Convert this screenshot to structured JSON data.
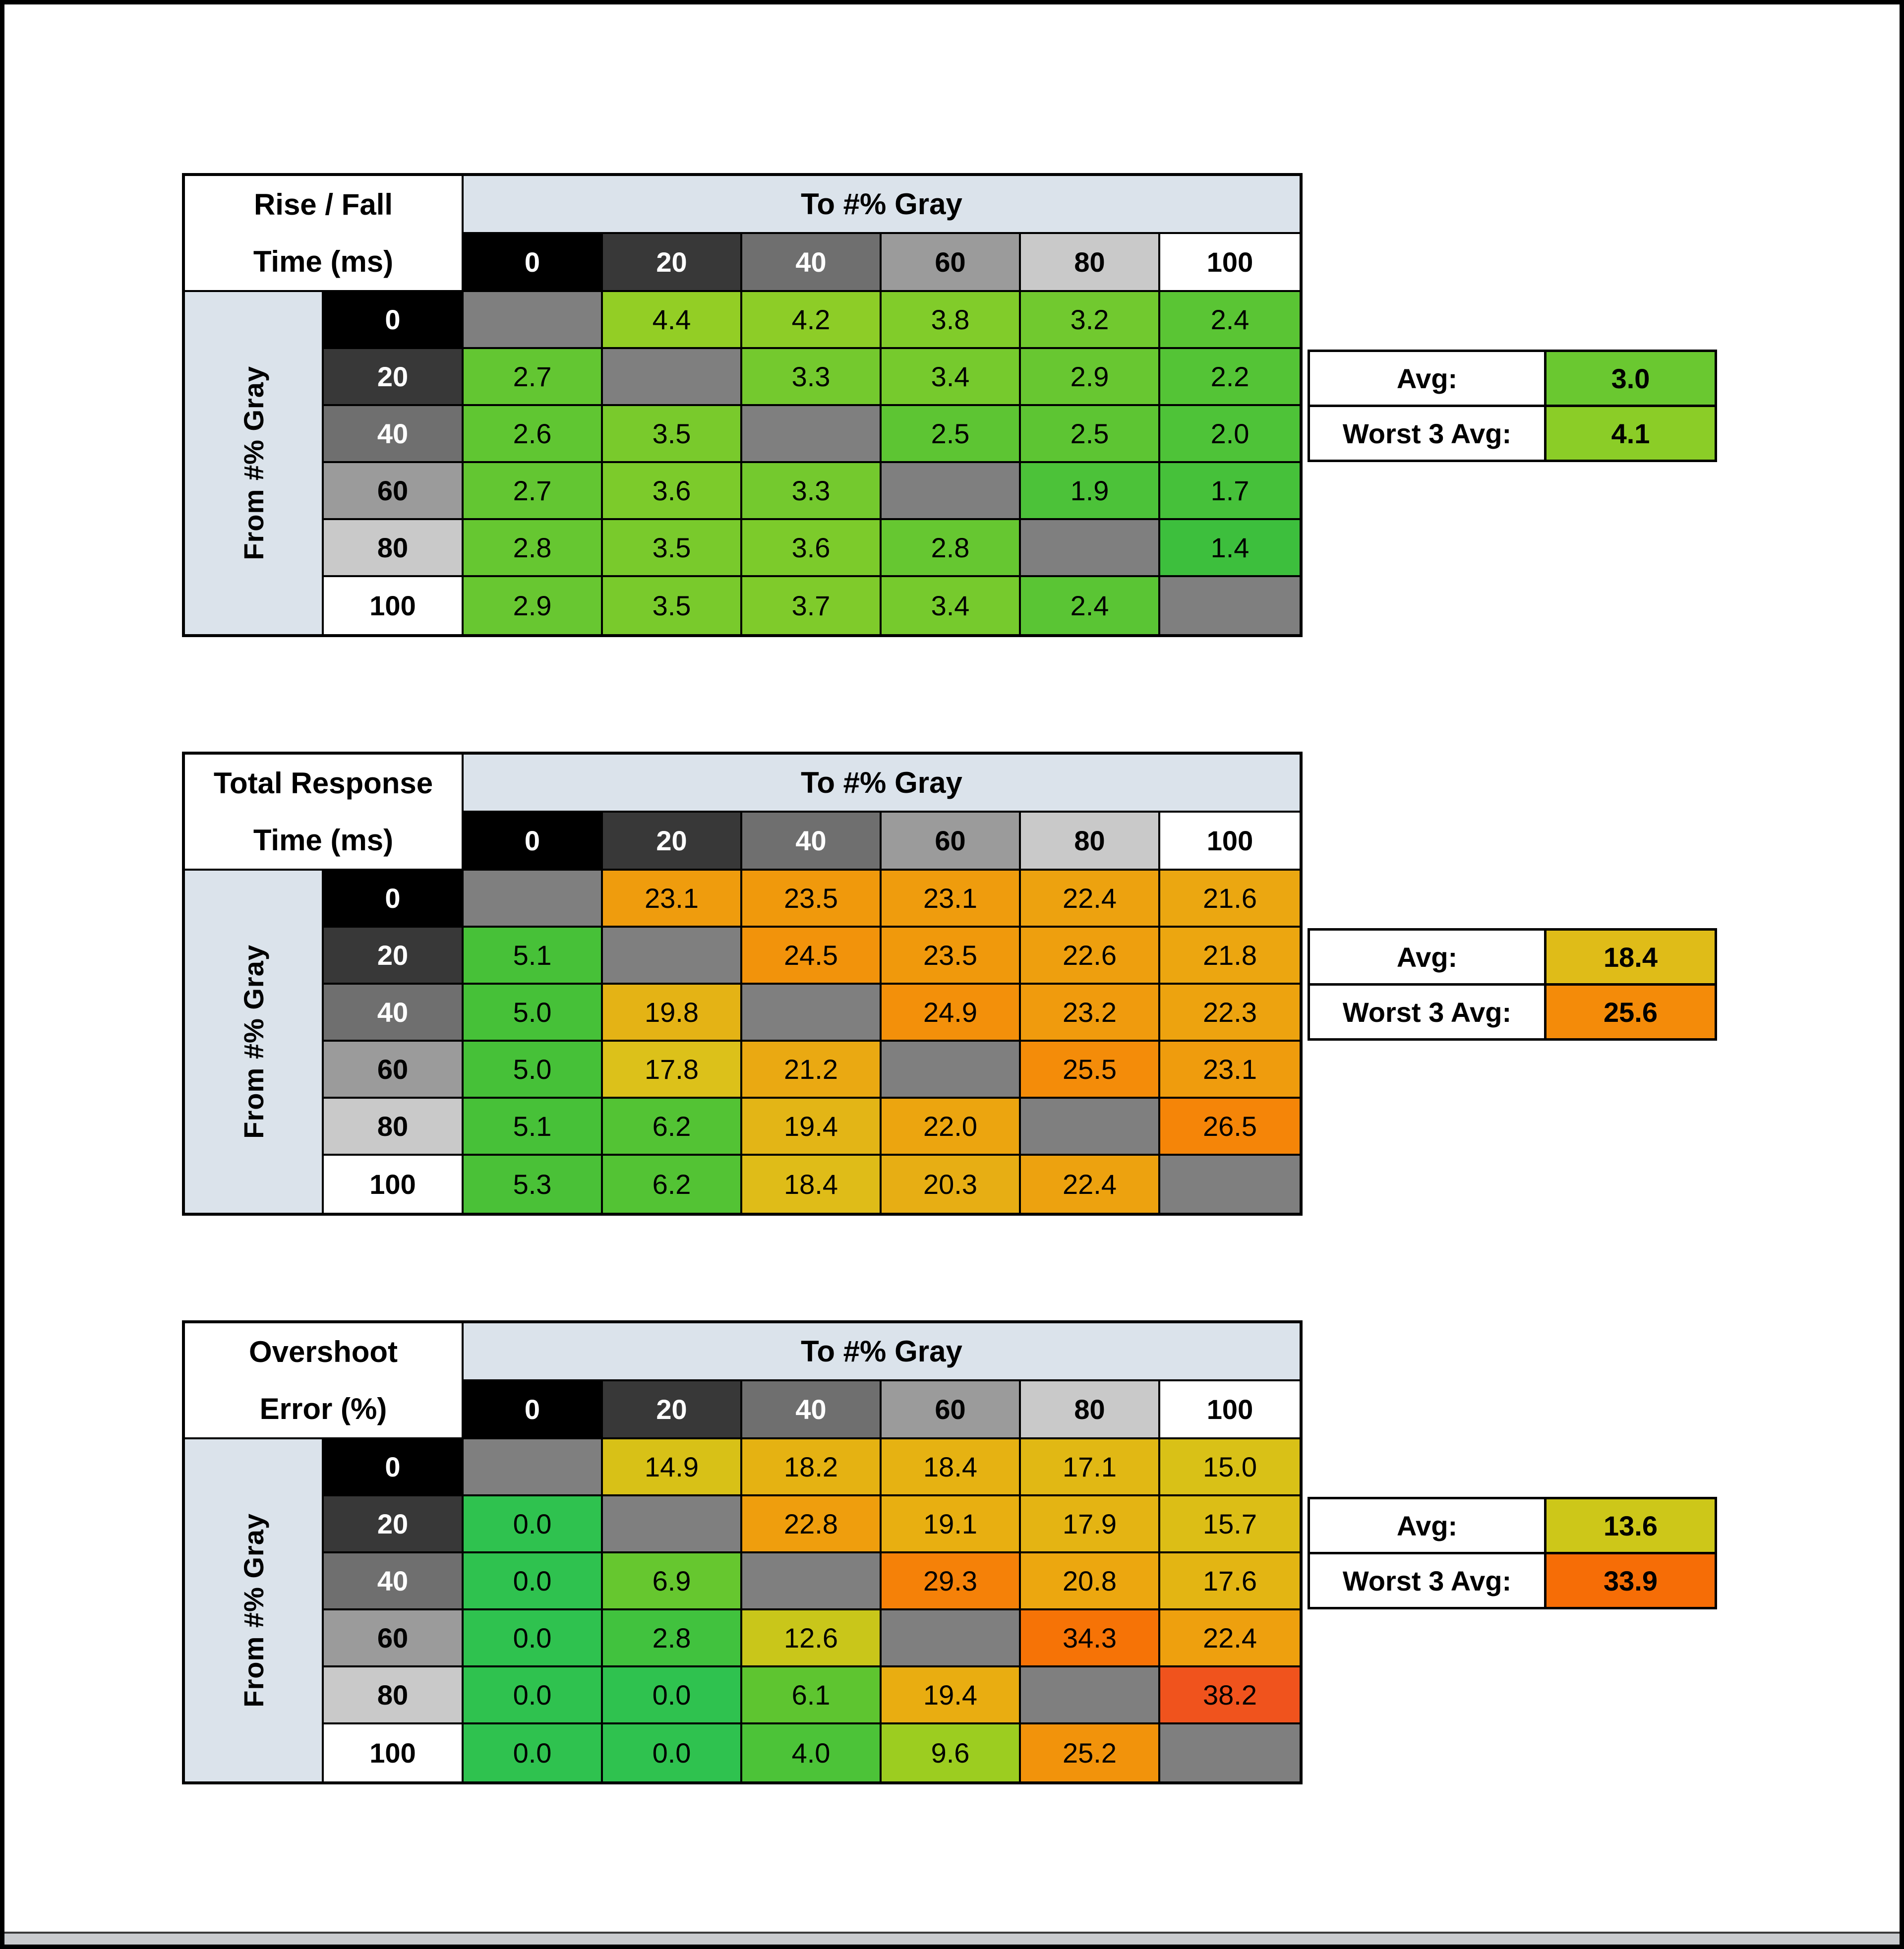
{
  "page": {
    "background": "#ffffff",
    "border_color": "#000000"
  },
  "shared": {
    "to_label": "To #% Gray",
    "from_label": "From #% Gray",
    "avg_label": "Avg:",
    "worst_label": "Worst 3 Avg:",
    "gray_levels": [
      "0",
      "20",
      "40",
      "60",
      "80",
      "100"
    ],
    "header_colors": [
      {
        "bg": "#000000",
        "fg": "#ffffff"
      },
      {
        "bg": "#383838",
        "fg": "#ffffff"
      },
      {
        "bg": "#6f6f6f",
        "fg": "#ffffff"
      },
      {
        "bg": "#9b9b9b",
        "fg": "#000000"
      },
      {
        "bg": "#c9c9c9",
        "fg": "#000000"
      },
      {
        "bg": "#ffffff",
        "fg": "#000000"
      }
    ],
    "diagonal_color": "#7f7f7f",
    "band_color": "#dbe3eb"
  },
  "tables": [
    {
      "title_line1": "Rise / Fall",
      "title_line2": "Time (ms)",
      "avg": {
        "value": "3.0",
        "color": "#6ac830"
      },
      "worst3": {
        "value": "4.1",
        "color": "#8bcd27"
      },
      "cells": [
        [
          null,
          {
            "v": "4.4",
            "c": "#93ce25"
          },
          {
            "v": "4.2",
            "c": "#8dcd27"
          },
          {
            "v": "3.8",
            "c": "#81cc2a"
          },
          {
            "v": "3.2",
            "c": "#71c92f"
          },
          {
            "v": "2.4",
            "c": "#5ac534"
          }
        ],
        [
          {
            "v": "2.7",
            "c": "#63c632"
          },
          null,
          {
            "v": "3.3",
            "c": "#74c92e"
          },
          {
            "v": "3.4",
            "c": "#76ca2d"
          },
          {
            "v": "2.9",
            "c": "#68c731"
          },
          {
            "v": "2.2",
            "c": "#54c436"
          }
        ],
        [
          {
            "v": "2.6",
            "c": "#60c632"
          },
          {
            "v": "3.5",
            "c": "#79ca2c"
          },
          null,
          {
            "v": "2.5",
            "c": "#5dc533"
          },
          {
            "v": "2.5",
            "c": "#5dc533"
          },
          {
            "v": "2.0",
            "c": "#4ec338"
          }
        ],
        [
          {
            "v": "2.7",
            "c": "#63c632"
          },
          {
            "v": "3.6",
            "c": "#7ccb2b"
          },
          {
            "v": "3.3",
            "c": "#74c92e"
          },
          null,
          {
            "v": "1.9",
            "c": "#4cc239"
          },
          {
            "v": "1.7",
            "c": "#46c13a"
          }
        ],
        [
          {
            "v": "2.8",
            "c": "#66c731"
          },
          {
            "v": "3.5",
            "c": "#79ca2c"
          },
          {
            "v": "3.6",
            "c": "#7ccb2b"
          },
          {
            "v": "2.8",
            "c": "#66c731"
          },
          null,
          {
            "v": "1.4",
            "c": "#3dbf3d"
          }
        ],
        [
          {
            "v": "2.9",
            "c": "#68c731"
          },
          {
            "v": "3.5",
            "c": "#79ca2c"
          },
          {
            "v": "3.7",
            "c": "#7fcb2b"
          },
          {
            "v": "3.4",
            "c": "#76ca2d"
          },
          {
            "v": "2.4",
            "c": "#5ac534"
          },
          null
        ]
      ]
    },
    {
      "title_line1": "Total Response",
      "title_line2": "Time (ms)",
      "avg": {
        "value": "18.4",
        "color": "#dfbc18"
      },
      "worst3": {
        "value": "25.6",
        "color": "#f48b09"
      },
      "cells": [
        [
          null,
          {
            "v": "23.1",
            "c": "#ef9c0d"
          },
          {
            "v": "23.5",
            "c": "#f0990c"
          },
          {
            "v": "23.1",
            "c": "#ef9c0d"
          },
          {
            "v": "22.4",
            "c": "#eda20f"
          },
          {
            "v": "21.6",
            "c": "#eba711"
          }
        ],
        [
          {
            "v": "5.1",
            "c": "#47c138"
          },
          null,
          {
            "v": "24.5",
            "c": "#f2930b"
          },
          {
            "v": "23.5",
            "c": "#f0990c"
          },
          {
            "v": "22.6",
            "c": "#ee9f0e"
          },
          {
            "v": "21.8",
            "c": "#eca610"
          }
        ],
        [
          {
            "v": "5.0",
            "c": "#46c138"
          },
          {
            "v": "19.8",
            "c": "#e4b315"
          },
          null,
          {
            "v": "24.9",
            "c": "#f3900a"
          },
          {
            "v": "23.2",
            "c": "#f09b0d"
          },
          {
            "v": "22.3",
            "c": "#eda30f"
          }
        ],
        [
          {
            "v": "5.0",
            "c": "#46c138"
          },
          {
            "v": "17.8",
            "c": "#dcc11a"
          },
          {
            "v": "21.2",
            "c": "#eaa912"
          },
          null,
          {
            "v": "25.5",
            "c": "#f48c09"
          },
          {
            "v": "23.1",
            "c": "#ef9c0d"
          }
        ],
        [
          {
            "v": "5.1",
            "c": "#47c138"
          },
          {
            "v": "6.2",
            "c": "#53c334"
          },
          {
            "v": "19.4",
            "c": "#e3b516"
          },
          {
            "v": "22.0",
            "c": "#eca50f"
          },
          null,
          {
            "v": "26.5",
            "c": "#f58508"
          }
        ],
        [
          {
            "v": "5.3",
            "c": "#4ac137"
          },
          {
            "v": "6.2",
            "c": "#53c334"
          },
          {
            "v": "18.4",
            "c": "#dfbc18"
          },
          {
            "v": "20.3",
            "c": "#e7ae14"
          },
          {
            "v": "22.4",
            "c": "#eda20f"
          },
          null
        ]
      ]
    },
    {
      "title_line1": "Overshoot",
      "title_line2": "Error (%)",
      "avg": {
        "value": "13.6",
        "color": "#cdc719"
      },
      "worst3": {
        "value": "33.9",
        "color": "#f66d06"
      },
      "cells": [
        [
          null,
          {
            "v": "14.9",
            "c": "#d8c117"
          },
          {
            "v": "18.2",
            "c": "#e5b212"
          },
          {
            "v": "18.4",
            "c": "#e6b212"
          },
          {
            "v": "17.1",
            "c": "#e1b814"
          },
          {
            "v": "15.0",
            "c": "#d9c117"
          }
        ],
        [
          {
            "v": "0.0",
            "c": "#2fc24f"
          },
          null,
          {
            "v": "22.8",
            "c": "#ef9e0d"
          },
          {
            "v": "19.1",
            "c": "#e8af11"
          },
          {
            "v": "17.9",
            "c": "#e4b413"
          },
          {
            "v": "15.7",
            "c": "#dcbe16"
          }
        ],
        [
          {
            "v": "0.0",
            "c": "#2fc24f"
          },
          {
            "v": "6.9",
            "c": "#66c72f"
          },
          null,
          {
            "v": "29.3",
            "c": "#f58108"
          },
          {
            "v": "20.8",
            "c": "#eca70f"
          },
          {
            "v": "17.6",
            "c": "#e3b513"
          }
        ],
        [
          {
            "v": "0.0",
            "c": "#2fc24f"
          },
          {
            "v": "2.8",
            "c": "#41c23e"
          },
          {
            "v": "12.6",
            "c": "#c9c61a"
          },
          null,
          {
            "v": "34.3",
            "c": "#f67306"
          },
          {
            "v": "22.4",
            "c": "#eea00e"
          }
        ],
        [
          {
            "v": "0.0",
            "c": "#2fc24f"
          },
          {
            "v": "0.0",
            "c": "#2fc24f"
          },
          {
            "v": "6.1",
            "c": "#5ec530"
          },
          {
            "v": "19.4",
            "c": "#e9ad11"
          },
          null,
          {
            "v": "38.2",
            "c": "#f0531d"
          }
        ],
        [
          {
            "v": "0.0",
            "c": "#2fc24f"
          },
          {
            "v": "0.0",
            "c": "#2fc24f"
          },
          {
            "v": "4.0",
            "c": "#4cc338"
          },
          {
            "v": "9.6",
            "c": "#9ccd20"
          },
          {
            "v": "25.2",
            "c": "#f2930b"
          },
          null
        ]
      ]
    }
  ],
  "chart_data": [
    {
      "type": "heatmap",
      "title": "Rise / Fall Time (ms)",
      "xlabel": "To #% Gray",
      "ylabel": "From #% Gray",
      "x_categories": [
        0,
        20,
        40,
        60,
        80,
        100
      ],
      "y_categories": [
        0,
        20,
        40,
        60,
        80,
        100
      ],
      "values": [
        [
          null,
          4.4,
          4.2,
          3.8,
          3.2,
          2.4
        ],
        [
          2.7,
          null,
          3.3,
          3.4,
          2.9,
          2.2
        ],
        [
          2.6,
          3.5,
          null,
          2.5,
          2.5,
          2.0
        ],
        [
          2.7,
          3.6,
          3.3,
          null,
          1.9,
          1.7
        ],
        [
          2.8,
          3.5,
          3.6,
          2.8,
          null,
          1.4
        ],
        [
          2.9,
          3.5,
          3.7,
          3.4,
          2.4,
          null
        ]
      ],
      "avg": 3.0,
      "worst_3_avg": 4.1
    },
    {
      "type": "heatmap",
      "title": "Total Response Time (ms)",
      "xlabel": "To #% Gray",
      "ylabel": "From #% Gray",
      "x_categories": [
        0,
        20,
        40,
        60,
        80,
        100
      ],
      "y_categories": [
        0,
        20,
        40,
        60,
        80,
        100
      ],
      "values": [
        [
          null,
          23.1,
          23.5,
          23.1,
          22.4,
          21.6
        ],
        [
          5.1,
          null,
          24.5,
          23.5,
          22.6,
          21.8
        ],
        [
          5.0,
          19.8,
          null,
          24.9,
          23.2,
          22.3
        ],
        [
          5.0,
          17.8,
          21.2,
          null,
          25.5,
          23.1
        ],
        [
          5.1,
          6.2,
          19.4,
          22.0,
          null,
          26.5
        ],
        [
          5.3,
          6.2,
          18.4,
          20.3,
          22.4,
          null
        ]
      ],
      "avg": 18.4,
      "worst_3_avg": 25.6
    },
    {
      "type": "heatmap",
      "title": "Overshoot Error (%)",
      "xlabel": "To #% Gray",
      "ylabel": "From #% Gray",
      "x_categories": [
        0,
        20,
        40,
        60,
        80,
        100
      ],
      "y_categories": [
        0,
        20,
        40,
        60,
        80,
        100
      ],
      "values": [
        [
          null,
          14.9,
          18.2,
          18.4,
          17.1,
          15.0
        ],
        [
          0.0,
          null,
          22.8,
          19.1,
          17.9,
          15.7
        ],
        [
          0.0,
          6.9,
          null,
          29.3,
          20.8,
          17.6
        ],
        [
          0.0,
          2.8,
          12.6,
          null,
          34.3,
          22.4
        ],
        [
          0.0,
          0.0,
          6.1,
          19.4,
          null,
          38.2
        ],
        [
          0.0,
          0.0,
          4.0,
          9.6,
          25.2,
          null
        ]
      ],
      "avg": 13.6,
      "worst_3_avg": 33.9
    }
  ]
}
